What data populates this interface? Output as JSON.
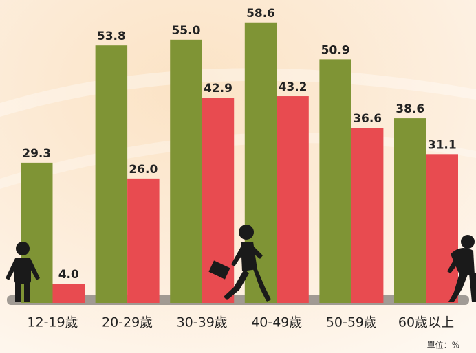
{
  "chart_data": {
    "type": "bar",
    "categories": [
      "12-19歲",
      "20-29歲",
      "30-39歲",
      "40-49歲",
      "50-59歲",
      "60歲以上"
    ],
    "series": [
      {
        "color": "#7f9435",
        "values": [
          29.3,
          53.8,
          55.0,
          58.6,
          50.9,
          38.6
        ],
        "value_labels": [
          "29.3",
          "53.8",
          "55.0",
          "58.6",
          "50.9",
          "38.6"
        ]
      },
      {
        "color": "#e84b50",
        "values": [
          4.0,
          26.0,
          42.9,
          43.2,
          36.6,
          31.1
        ],
        "value_labels": [
          "4.0",
          "26.0",
          "42.9",
          "43.2",
          "36.6",
          "31.1"
        ]
      }
    ],
    "ylim": [
      0,
      60
    ],
    "annotation": "單位：%"
  }
}
